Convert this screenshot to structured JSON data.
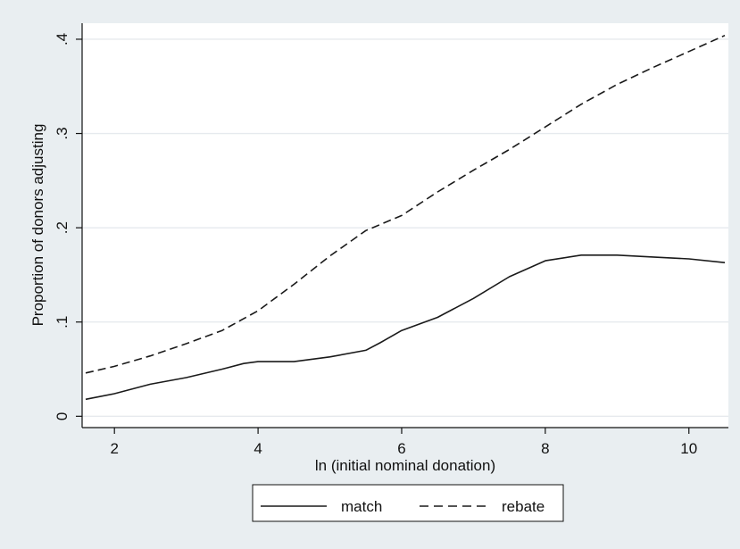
{
  "chart_data": {
    "type": "line",
    "title": "",
    "xlabel": "ln (initial nominal donation)",
    "ylabel": "Proportion of donors adjusting",
    "xlim": [
      1.55,
      10.55
    ],
    "ylim": [
      -0.012,
      0.417
    ],
    "x_ticks": [
      2,
      4,
      6,
      8,
      10
    ],
    "x_tick_labels": [
      "2",
      "4",
      "6",
      "8",
      "10"
    ],
    "y_ticks": [
      0,
      0.1,
      0.2,
      0.3,
      0.4
    ],
    "y_tick_labels": [
      "0",
      ".1",
      ".2",
      ".3",
      ".4"
    ],
    "grid": "horizontal",
    "legend_position": "bottom",
    "series": [
      {
        "name": "match",
        "style": "solid",
        "color": "#1a1a1a",
        "points": [
          [
            1.6,
            0.018
          ],
          [
            2.0,
            0.024
          ],
          [
            2.5,
            0.034
          ],
          [
            3.0,
            0.041
          ],
          [
            3.5,
            0.05
          ],
          [
            3.8,
            0.056
          ],
          [
            4.0,
            0.058
          ],
          [
            4.5,
            0.058
          ],
          [
            5.0,
            0.063
          ],
          [
            5.5,
            0.07
          ],
          [
            5.7,
            0.078
          ],
          [
            6.0,
            0.091
          ],
          [
            6.5,
            0.105
          ],
          [
            7.0,
            0.125
          ],
          [
            7.5,
            0.148
          ],
          [
            8.0,
            0.165
          ],
          [
            8.5,
            0.171
          ],
          [
            9.0,
            0.171
          ],
          [
            9.5,
            0.169
          ],
          [
            10.0,
            0.167
          ],
          [
            10.5,
            0.163
          ]
        ]
      },
      {
        "name": "rebate",
        "style": "dashed",
        "color": "#1a1a1a",
        "points": [
          [
            1.6,
            0.046
          ],
          [
            2.0,
            0.053
          ],
          [
            2.5,
            0.064
          ],
          [
            3.0,
            0.077
          ],
          [
            3.5,
            0.091
          ],
          [
            4.0,
            0.112
          ],
          [
            4.5,
            0.14
          ],
          [
            5.0,
            0.17
          ],
          [
            5.5,
            0.197
          ],
          [
            6.0,
            0.213
          ],
          [
            6.5,
            0.238
          ],
          [
            7.0,
            0.261
          ],
          [
            7.5,
            0.283
          ],
          [
            8.0,
            0.307
          ],
          [
            8.5,
            0.331
          ],
          [
            9.0,
            0.352
          ],
          [
            9.5,
            0.37
          ],
          [
            10.0,
            0.387
          ],
          [
            10.5,
            0.404
          ]
        ]
      }
    ]
  }
}
